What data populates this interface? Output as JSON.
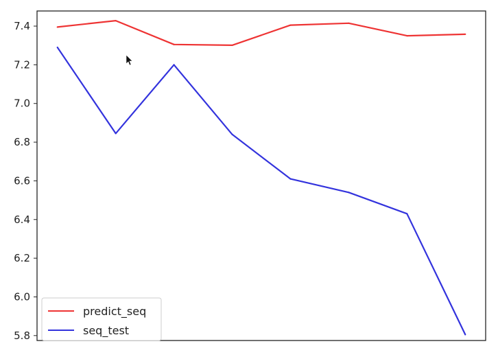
{
  "chart_data": {
    "type": "line",
    "title": "",
    "xlabel": "",
    "ylabel": "",
    "x": [
      0,
      1,
      2,
      3,
      4,
      5,
      6,
      7
    ],
    "series": [
      {
        "name": "predict_seq",
        "color": "#ee3333",
        "values": [
          7.395,
          7.428,
          7.305,
          7.301,
          7.405,
          7.415,
          7.35,
          7.358
        ]
      },
      {
        "name": "seq_test",
        "color": "#3333dd",
        "values": [
          7.29,
          6.845,
          7.2,
          6.84,
          6.61,
          6.54,
          6.43,
          5.805
        ]
      }
    ],
    "yticks": [
      "7.4",
      "7.2",
      "7.0",
      "6.8",
      "6.6",
      "6.4",
      "6.2",
      "6.0",
      "5.8"
    ],
    "ylim": [
      5.7745,
      7.4782
    ],
    "xlim": [
      -0.35,
      7.35
    ],
    "grid": false,
    "legend_position": "lower-left"
  }
}
